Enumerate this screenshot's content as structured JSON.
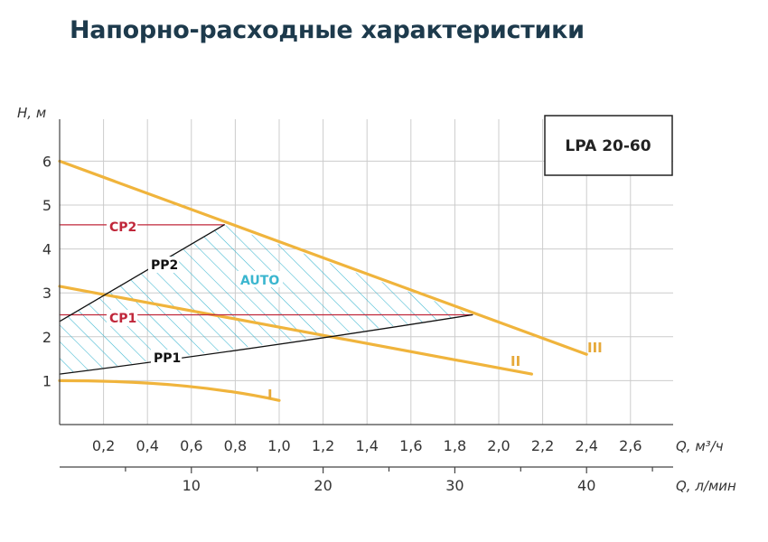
{
  "title": "Напорно-расходные характеристики",
  "model": "LPA 20-60",
  "colors": {
    "speed_curve": "#f0b43c",
    "speed_label": "#e6a93a",
    "constant_pressure": "#c0273a",
    "proportional_pressure": "#111111",
    "auto_hatch": "#3bb6cf",
    "grid": "#cccccc",
    "title": "#1d3a4c"
  },
  "chart_data": {
    "type": "line",
    "title": "Напорно-расходные характеристики",
    "ylabel": "H, м",
    "xlabel": "Q, м³/ч",
    "xlabel_secondary": "Q, л/мин",
    "xlim": [
      0,
      2.8
    ],
    "ylim": [
      0,
      7
    ],
    "x_ticks": [
      "0,2",
      "0,4",
      "0,6",
      "0,8",
      "1,0",
      "1,2",
      "1,4",
      "1,6",
      "1,8",
      "2,0",
      "2,2",
      "2,4",
      "2,6"
    ],
    "y_ticks": [
      "1",
      "2",
      "3",
      "4",
      "5",
      "6"
    ],
    "x2_ticks": [
      "10",
      "20",
      "30",
      "40"
    ],
    "grid": true,
    "series": [
      {
        "name": "I",
        "kind": "speed",
        "x": [
          0,
          0.4,
          0.7,
          1.0
        ],
        "y": [
          1.0,
          0.95,
          0.8,
          0.55
        ]
      },
      {
        "name": "II",
        "kind": "speed",
        "x": [
          0,
          2.15
        ],
        "y": [
          3.15,
          1.15
        ]
      },
      {
        "name": "III",
        "kind": "speed",
        "x": [
          0,
          2.4
        ],
        "y": [
          6.0,
          1.6
        ]
      },
      {
        "name": "CP2",
        "kind": "constant",
        "x": [
          0,
          0.75
        ],
        "y": [
          4.55,
          4.55
        ]
      },
      {
        "name": "CP1",
        "kind": "constant",
        "x": [
          0,
          1.88
        ],
        "y": [
          2.5,
          2.5
        ]
      },
      {
        "name": "PP2",
        "kind": "proportional",
        "x": [
          0,
          0.75
        ],
        "y": [
          2.35,
          4.55
        ]
      },
      {
        "name": "PP1",
        "kind": "proportional",
        "x": [
          0,
          0.55,
          1.88
        ],
        "y": [
          1.15,
          1.55,
          2.5
        ]
      }
    ],
    "area": {
      "name": "AUTO",
      "x": [
        0,
        0.75,
        1.88,
        0.55,
        0
      ],
      "y": [
        2.35,
        4.55,
        2.5,
        1.55,
        1.15
      ]
    }
  }
}
